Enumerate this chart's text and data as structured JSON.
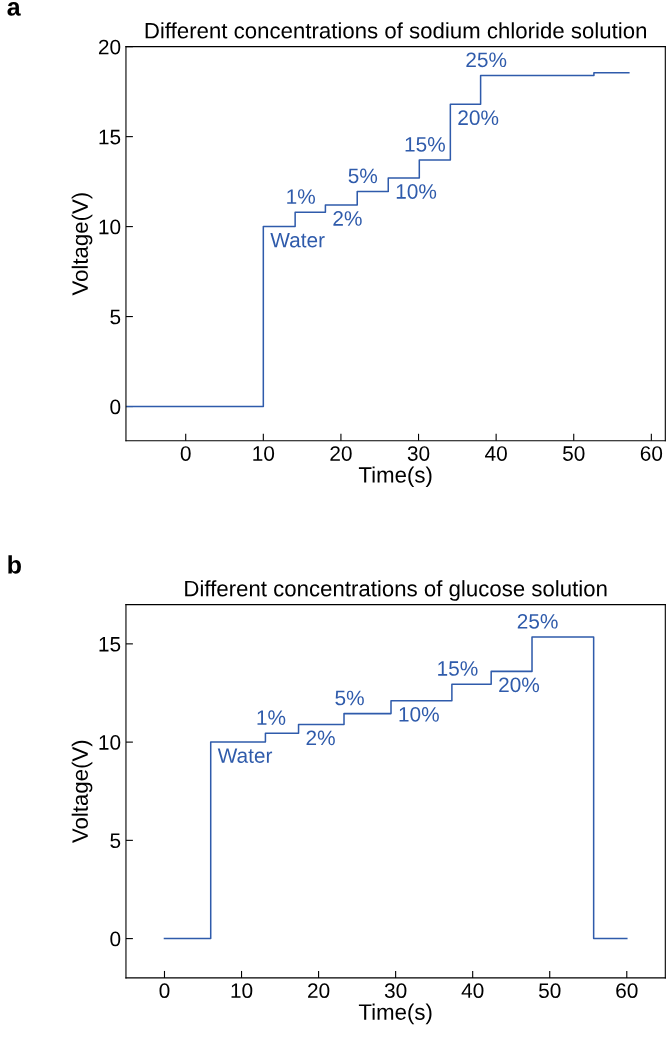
{
  "chart_data": [
    {
      "type": "step",
      "title": "Different concentrations of sodium chloride solution",
      "xlabel": "Time(s)",
      "ylabel": "Voltage(V)",
      "series": [
        {
          "color": "#2f5bab",
          "x": [
            -7.6,
            10,
            14.1,
            18,
            22.1,
            26.1,
            30.1,
            34.1,
            38,
            52.6,
            57.1
          ],
          "values": [
            0,
            10,
            10.8,
            11.2,
            11.95,
            12.7,
            13.7,
            16.8,
            18.4,
            18.55,
            18.55
          ]
        }
      ],
      "xlim": [
        -7.7,
        61.8
      ],
      "xticks": [
        0,
        10,
        20,
        30,
        40,
        50,
        60
      ],
      "ylim": [
        -1.9,
        20
      ],
      "yticks": [
        0,
        5,
        10,
        15,
        20
      ],
      "grid": false,
      "legend": false,
      "annotations": [
        "a",
        {
          "text": "Water",
          "x": 10,
          "y": 10
        },
        {
          "text": "1%",
          "x": 14.1,
          "y": 10.8
        },
        {
          "text": "2%",
          "x": 18,
          "y": 11.2
        },
        {
          "text": "5%",
          "x": 22.1,
          "y": 11.95
        },
        {
          "text": "10%",
          "x": 26.1,
          "y": 12.7
        },
        {
          "text": "15%",
          "x": 30.1,
          "y": 13.7
        },
        {
          "text": "20%",
          "x": 34.1,
          "y": 16.8
        },
        {
          "text": "25%",
          "x": 38,
          "y": 18.4
        }
      ]
    },
    {
      "type": "step",
      "title": "Different concentrations of glucose solution",
      "xlabel": "Time(s)",
      "ylabel": "Voltage(V)",
      "series": [
        {
          "color": "#2f5bab",
          "x": [
            0,
            6,
            13.1,
            17.4,
            23.3,
            29.4,
            37.3,
            42.4,
            47.7,
            55.7,
            60
          ],
          "values": [
            0,
            10,
            10.45,
            10.9,
            11.45,
            12.1,
            12.95,
            13.6,
            15.35,
            0,
            0
          ]
        }
      ],
      "xlim": [
        -5,
        65
      ],
      "xticks": [
        0,
        10,
        20,
        30,
        40,
        50,
        60
      ],
      "ylim": [
        -2,
        17
      ],
      "yticks": [
        0,
        5,
        10,
        15
      ],
      "grid": false,
      "legend": false,
      "annotations": [
        "b",
        {
          "text": "Water",
          "x": 6,
          "y": 10
        },
        {
          "text": "1%",
          "x": 13.1,
          "y": 10.45
        },
        {
          "text": "2%",
          "x": 17.4,
          "y": 10.9
        },
        {
          "text": "5%",
          "x": 23.3,
          "y": 11.45
        },
        {
          "text": "10%",
          "x": 29.4,
          "y": 12.1
        },
        {
          "text": "15%",
          "x": 37.3,
          "y": 12.95
        },
        {
          "text": "20%",
          "x": 42.4,
          "y": 13.6
        },
        {
          "text": "25%",
          "x": 47.7,
          "y": 15.35
        }
      ]
    }
  ]
}
